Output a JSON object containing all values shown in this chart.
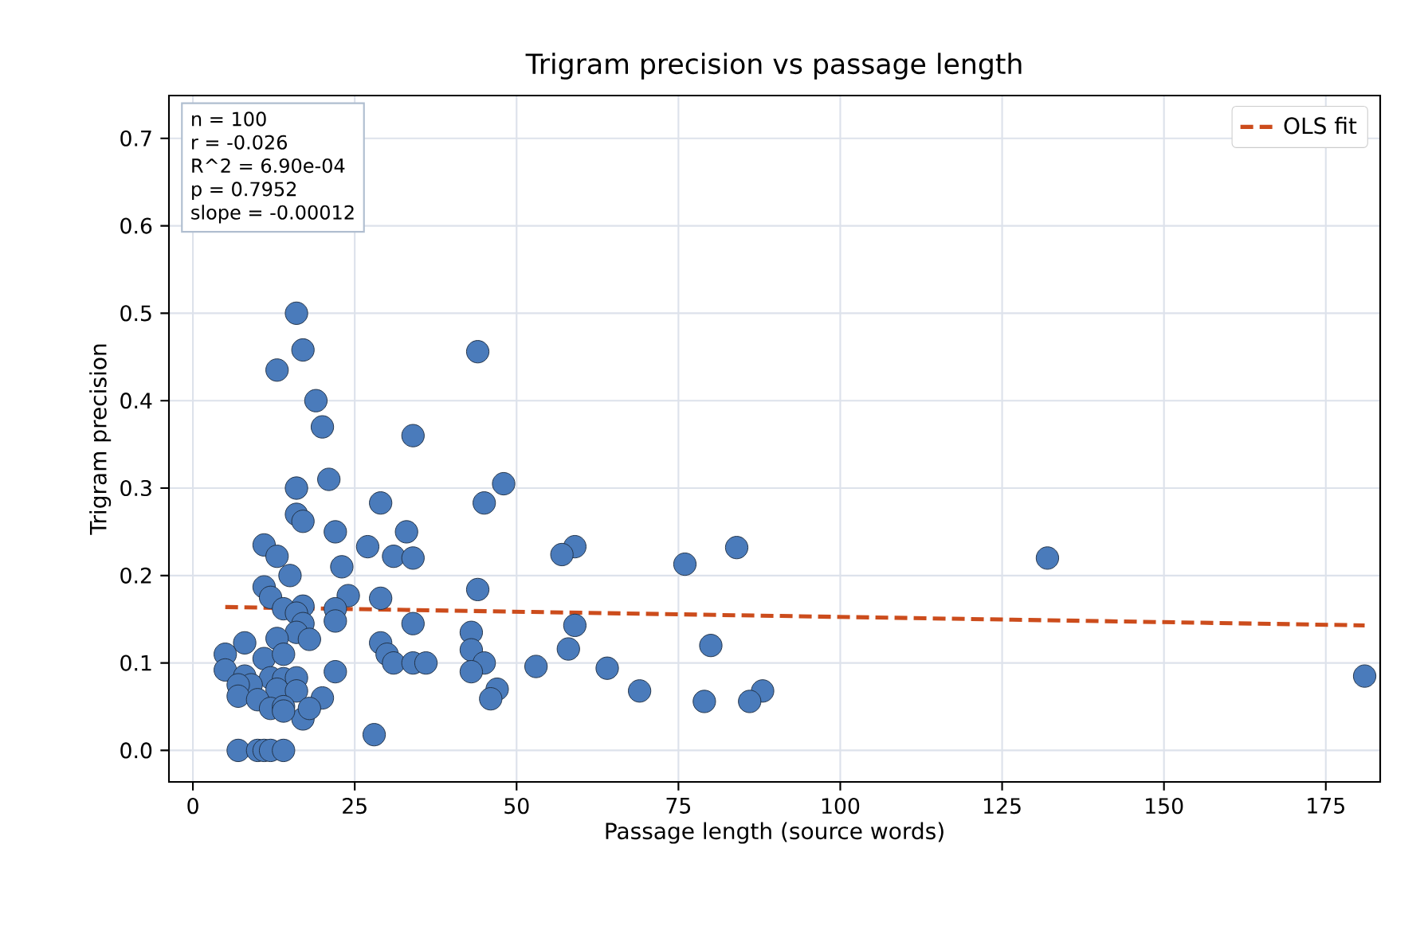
{
  "chart_data": {
    "type": "scatter",
    "title": "Trigram precision vs passage length",
    "xlabel": "Passage length (source words)",
    "ylabel": "Trigram precision",
    "xlim": [
      -3.7,
      183.4
    ],
    "ylim": [
      -0.036,
      0.749
    ],
    "xticks": [
      0,
      25,
      50,
      75,
      100,
      125,
      150,
      175
    ],
    "yticks": [
      {
        "value": 0,
        "label": "0.0"
      },
      0.1,
      0.2,
      0.3,
      0.4,
      0.5,
      0.6,
      0.7
    ],
    "grid": true,
    "legend": "top right",
    "annotations": [
      "n = 100",
      "r = -0.026",
      "R^2 = 6.90e-04",
      "p = 0.7952",
      "slope = -0.00012"
    ],
    "series": [
      {
        "color": "#4a7bbb",
        "marker": "circle",
        "x": [
          16,
          17,
          13,
          44,
          19,
          20,
          34,
          21,
          48,
          16,
          45,
          29,
          16,
          17,
          22,
          33,
          11,
          27,
          59,
          84,
          132,
          31,
          34,
          13,
          57,
          76,
          23,
          15,
          11,
          12,
          24,
          29,
          44,
          22,
          14,
          17,
          16,
          17,
          59,
          34,
          22,
          16,
          43,
          13,
          18,
          29,
          8,
          58,
          80,
          43,
          5,
          11,
          30,
          14,
          31,
          34,
          36,
          45,
          53,
          64,
          22,
          43,
          5,
          8,
          12,
          14,
          16,
          9,
          7,
          13,
          16,
          47,
          69,
          88,
          7,
          10,
          20,
          46,
          79,
          86,
          12,
          14,
          17,
          18,
          14,
          28,
          181,
          7,
          10,
          11,
          12,
          14
        ],
        "values": [
          0.5,
          0.458,
          0.435,
          0.456,
          0.4,
          0.37,
          0.36,
          0.31,
          0.305,
          0.3,
          0.283,
          0.283,
          0.27,
          0.262,
          0.25,
          0.25,
          0.235,
          0.233,
          0.233,
          0.232,
          0.22,
          0.222,
          0.22,
          0.222,
          0.224,
          0.213,
          0.21,
          0.2,
          0.187,
          0.175,
          0.177,
          0.174,
          0.184,
          0.162,
          0.162,
          0.165,
          0.157,
          0.145,
          0.143,
          0.145,
          0.148,
          0.135,
          0.135,
          0.128,
          0.127,
          0.123,
          0.123,
          0.116,
          0.12,
          0.115,
          0.11,
          0.105,
          0.11,
          0.11,
          0.1,
          0.1,
          0.1,
          0.1,
          0.096,
          0.094,
          0.09,
          0.09,
          0.092,
          0.085,
          0.083,
          0.082,
          0.083,
          0.075,
          0.075,
          0.07,
          0.068,
          0.07,
          0.068,
          0.068,
          0.062,
          0.058,
          0.06,
          0.059,
          0.056,
          0.056,
          0.048,
          0.05,
          0.036,
          0.048,
          0.045,
          0.018,
          0.085,
          0.0,
          0.0,
          0.0,
          0.0,
          0.0
        ]
      },
      {
        "type": "line",
        "name": "OLS fit",
        "color": "#cc4c1c",
        "line_style": "dashed",
        "marker": "none",
        "x": [
          5,
          181
        ],
        "values": [
          0.164,
          0.143
        ]
      }
    ]
  }
}
